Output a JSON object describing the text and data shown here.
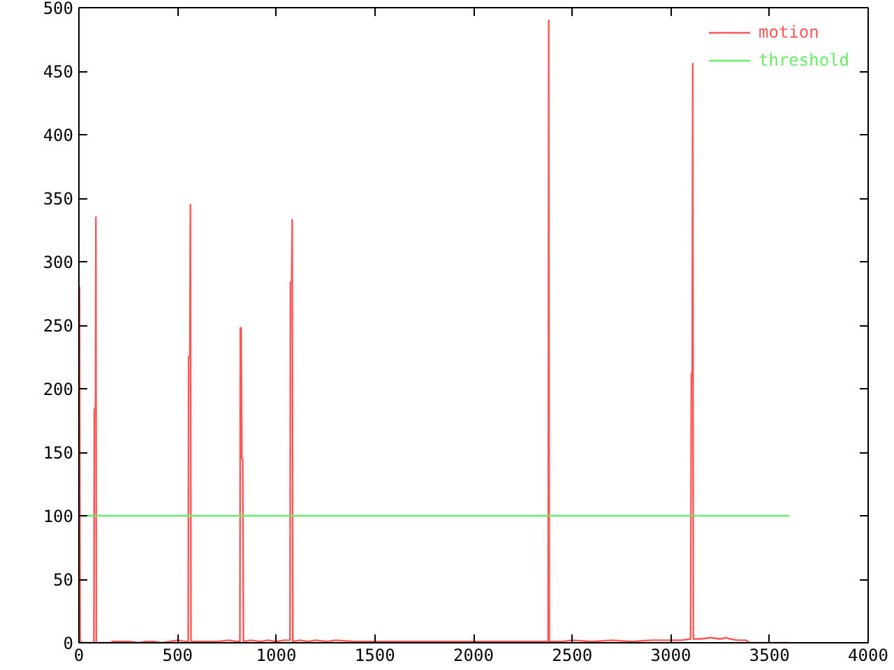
{
  "chart_data": {
    "type": "line",
    "xlim": [
      0,
      4000
    ],
    "xticks": [
      0,
      500,
      1000,
      1500,
      2000,
      2500,
      3000,
      3500,
      4000
    ],
    "ylim": [
      0,
      500
    ],
    "yticks": [
      0,
      50,
      100,
      150,
      200,
      250,
      300,
      350,
      400,
      450,
      500
    ],
    "grid": false,
    "legend": "top right",
    "marker": "none",
    "line_style": "solid",
    "series": [
      {
        "name": "motion",
        "color": "#ff5555",
        "x": [
          0,
          3,
          6,
          20,
          70,
          76,
          78,
          84,
          86,
          88,
          120,
          160,
          170,
          200,
          260,
          300,
          340,
          380,
          420,
          460,
          500,
          540,
          554,
          556,
          562,
          565,
          568,
          600,
          650,
          700,
          760,
          800,
          816,
          818,
          822,
          826,
          830,
          834,
          870,
          920,
          960,
          1000,
          1040,
          1070,
          1072,
          1078,
          1081,
          1084,
          1120,
          1160,
          1200,
          1260,
          1300,
          1400,
          1500,
          1600,
          1700,
          1800,
          1900,
          2000,
          2100,
          2200,
          2300,
          2378,
          2381,
          2384,
          2450,
          2500,
          2600,
          2700,
          2800,
          2900,
          3000,
          3050,
          3100,
          3104,
          3108,
          3111,
          3114,
          3150,
          3200,
          3250,
          3280,
          3300,
          3340,
          3380,
          3400,
          3500,
          3600
        ],
        "values": [
          2,
          280,
          1,
          0,
          0,
          0,
          184,
          184,
          335,
          0,
          0,
          0,
          1,
          1,
          1,
          0,
          1,
          1,
          0,
          1,
          2,
          1,
          1,
          225,
          225,
          345,
          1,
          1,
          1,
          1,
          2,
          1,
          1,
          248,
          248,
          145,
          145,
          1,
          2,
          1,
          2,
          1,
          2,
          2,
          284,
          284,
          333,
          1,
          2,
          1,
          2,
          1,
          2,
          1,
          1,
          1,
          1,
          1,
          1,
          1,
          1,
          1,
          1,
          1,
          490,
          1,
          1,
          2,
          1,
          2,
          1,
          2,
          2,
          2,
          3,
          212,
          212,
          456,
          3,
          3,
          4,
          3,
          4,
          3,
          2,
          2,
          0,
          0,
          0
        ]
      },
      {
        "name": "threshold",
        "color": "#66ee66",
        "x": [
          0,
          3600
        ],
        "values": [
          100,
          100
        ]
      }
    ]
  }
}
